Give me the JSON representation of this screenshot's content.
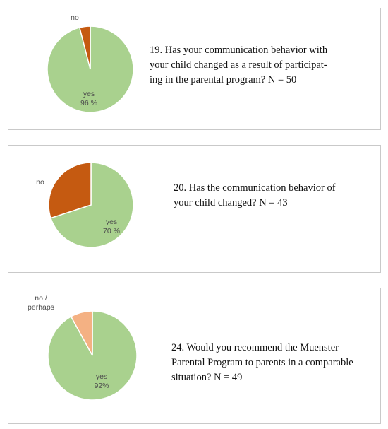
{
  "colors": {
    "yes": "#a9d18e",
    "no_dark": "#c55a11",
    "no_light": "#f4b183",
    "border": "#c9c9c9"
  },
  "chart_data": [
    {
      "type": "pie",
      "question": "19. Has your communication behavior with\nyour child changed as a result of participat-\ning in the parental program? N = 50",
      "slices": [
        {
          "label": "yes",
          "value": 96,
          "value_label": "96 %",
          "color": "#a9d18e"
        },
        {
          "label": "no",
          "value": 4,
          "value_label": "",
          "color": "#c55a11"
        }
      ]
    },
    {
      "type": "pie",
      "question": "20. Has the communication behavior of\nyour child changed? N = 43",
      "slices": [
        {
          "label": "yes",
          "value": 70,
          "value_label": "70 %",
          "color": "#a9d18e"
        },
        {
          "label": "no",
          "value": 30,
          "value_label": "",
          "color": "#c55a11"
        }
      ]
    },
    {
      "type": "pie",
      "question": "24. Would you recommend the Muenster\nParental Program to parents in a comparable\nsituation? N = 49",
      "slices": [
        {
          "label": "yes",
          "value": 92,
          "value_label": "92%",
          "color": "#a9d18e"
        },
        {
          "label": "no /\nperhaps",
          "value": 8,
          "value_label": "",
          "color": "#f4b183"
        }
      ]
    }
  ]
}
